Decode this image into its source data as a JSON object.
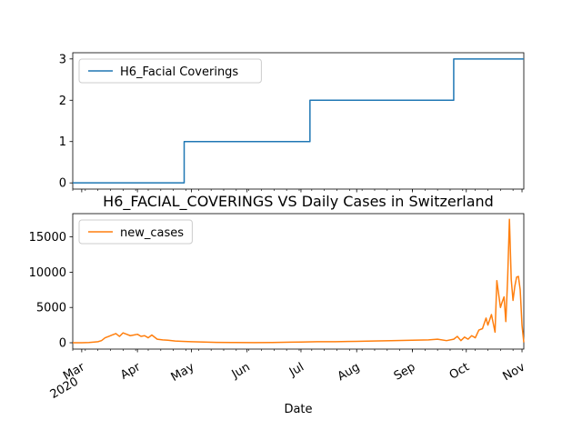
{
  "chart_data": [
    {
      "type": "line",
      "title": "",
      "xlabel": "",
      "ylabel": "",
      "ylim": [
        -0.15,
        3.15
      ],
      "yticks": [
        0,
        1,
        2,
        3
      ],
      "grid": false,
      "legend_placement": "top-left",
      "color": "#1f77b4",
      "series": [
        {
          "name": "H6_Facial Coverings",
          "x": [
            "2020-02-25",
            "2020-04-27",
            "2020-04-27",
            "2020-07-06",
            "2020-07-06",
            "2020-09-24",
            "2020-09-24",
            "2020-11-02"
          ],
          "y": [
            0,
            0,
            1,
            1,
            2,
            2,
            3,
            3
          ]
        }
      ]
    },
    {
      "type": "line",
      "title": "H6_FACIAL_COVERINGS VS Daily Cases in Switzerland",
      "xlabel": "Date",
      "ylabel": "",
      "ylim": [
        -900,
        18300
      ],
      "yticks": [
        0,
        5000,
        10000,
        15000
      ],
      "xlim": [
        "2020-02-25",
        "2020-11-02"
      ],
      "xticks": [
        {
          "date": "2020-03-01",
          "label": "Mar",
          "sublabel": "2020"
        },
        {
          "date": "2020-04-01",
          "label": "Apr"
        },
        {
          "date": "2020-05-01",
          "label": "May"
        },
        {
          "date": "2020-06-01",
          "label": "Jun"
        },
        {
          "date": "2020-07-01",
          "label": "Jul"
        },
        {
          "date": "2020-08-01",
          "label": "Aug"
        },
        {
          "date": "2020-09-01",
          "label": "Sep"
        },
        {
          "date": "2020-10-01",
          "label": "Oct"
        },
        {
          "date": "2020-11-01",
          "label": "Nov"
        }
      ],
      "grid": false,
      "legend_placement": "top-left",
      "color": "#ff7f0e",
      "series": [
        {
          "name": "new_cases",
          "x": [
            "2020-02-25",
            "2020-03-01",
            "2020-03-05",
            "2020-03-08",
            "2020-03-10",
            "2020-03-12",
            "2020-03-14",
            "2020-03-16",
            "2020-03-18",
            "2020-03-20",
            "2020-03-22",
            "2020-03-24",
            "2020-03-26",
            "2020-03-28",
            "2020-03-30",
            "2020-04-01",
            "2020-04-03",
            "2020-04-05",
            "2020-04-07",
            "2020-04-09",
            "2020-04-12",
            "2020-04-15",
            "2020-04-18",
            "2020-04-22",
            "2020-04-26",
            "2020-05-01",
            "2020-05-08",
            "2020-05-15",
            "2020-05-25",
            "2020-06-05",
            "2020-06-15",
            "2020-06-25",
            "2020-07-01",
            "2020-07-10",
            "2020-07-20",
            "2020-08-01",
            "2020-08-10",
            "2020-08-20",
            "2020-09-01",
            "2020-09-10",
            "2020-09-15",
            "2020-09-20",
            "2020-09-24",
            "2020-09-26",
            "2020-09-28",
            "2020-09-30",
            "2020-10-02",
            "2020-10-04",
            "2020-10-06",
            "2020-10-08",
            "2020-10-10",
            "2020-10-12",
            "2020-10-13",
            "2020-10-15",
            "2020-10-17",
            "2020-10-18",
            "2020-10-20",
            "2020-10-21",
            "2020-10-22",
            "2020-10-23",
            "2020-10-24",
            "2020-10-25",
            "2020-10-26",
            "2020-10-27",
            "2020-10-28",
            "2020-10-29",
            "2020-10-30",
            "2020-10-31",
            "2020-11-01",
            "2020-11-02"
          ],
          "y": [
            0,
            5,
            30,
            100,
            150,
            300,
            700,
            900,
            1100,
            1300,
            900,
            1400,
            1200,
            1000,
            1100,
            1200,
            900,
            1000,
            700,
            1100,
            500,
            400,
            350,
            250,
            200,
            150,
            100,
            50,
            30,
            20,
            30,
            80,
            100,
            150,
            150,
            200,
            250,
            300,
            350,
            400,
            500,
            300,
            500,
            900,
            300,
            800,
            500,
            1000,
            700,
            1800,
            2000,
            3500,
            2500,
            4000,
            1500,
            8800,
            5000,
            5800,
            6500,
            3000,
            9000,
            17500,
            9000,
            6000,
            8000,
            9300,
            9400,
            7500,
            2500,
            50
          ]
        }
      ]
    }
  ]
}
